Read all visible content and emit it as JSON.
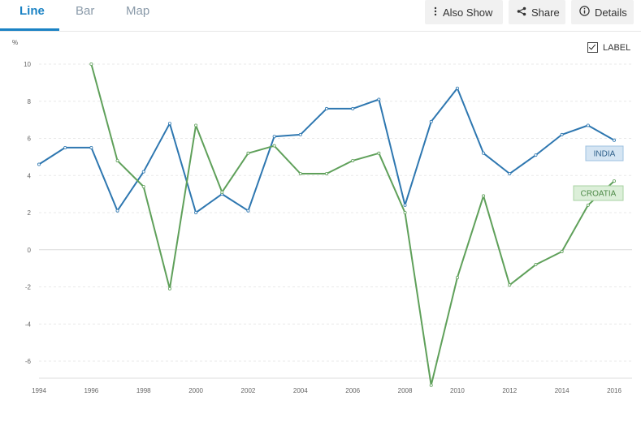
{
  "tabs": [
    "Line",
    "Bar",
    "Map"
  ],
  "toolbar": {
    "also_show": "Also Show",
    "share": "Share",
    "details": "Details"
  },
  "label_toggle": "LABEL",
  "colors": {
    "india": "#2e77b0",
    "croatia": "#5fa05a",
    "accent": "#1a82c4"
  },
  "chart_data": {
    "type": "line",
    "ylabel": "%",
    "ylim": [
      -7,
      10
    ],
    "yticks": [
      10,
      8,
      6,
      4,
      2,
      0,
      -2,
      -4,
      -6
    ],
    "xticks": [
      1994,
      1996,
      1998,
      2000,
      2002,
      2004,
      2006,
      2008,
      2010,
      2012,
      2014,
      2016
    ],
    "grid": true,
    "series": [
      {
        "name": "INDIA",
        "x": [
          1994,
          1995,
          1996,
          1997,
          1998,
          1999,
          2000,
          2001,
          2002,
          2003,
          2004,
          2005,
          2006,
          2007,
          2008,
          2009,
          2010,
          2011,
          2012,
          2013,
          2014,
          2015,
          2016
        ],
        "values": [
          4.6,
          5.5,
          5.5,
          2.1,
          4.2,
          6.8,
          2.0,
          3.0,
          2.1,
          6.1,
          6.2,
          7.6,
          7.6,
          8.1,
          2.4,
          6.9,
          8.7,
          5.2,
          4.1,
          5.1,
          6.2,
          6.7,
          5.9
        ]
      },
      {
        "name": "CROATIA",
        "x": [
          1996,
          1997,
          1998,
          1999,
          2000,
          2001,
          2002,
          2003,
          2004,
          2005,
          2006,
          2007,
          2008,
          2009,
          2010,
          2011,
          2012,
          2013,
          2014,
          2015,
          2016
        ],
        "values": [
          10.0,
          4.8,
          3.4,
          -2.1,
          6.7,
          3.1,
          5.2,
          5.6,
          4.1,
          4.1,
          4.8,
          5.2,
          2.0,
          -7.3,
          -1.5,
          2.9,
          -1.9,
          -0.8,
          -0.1,
          2.4,
          3.7
        ]
      }
    ]
  }
}
